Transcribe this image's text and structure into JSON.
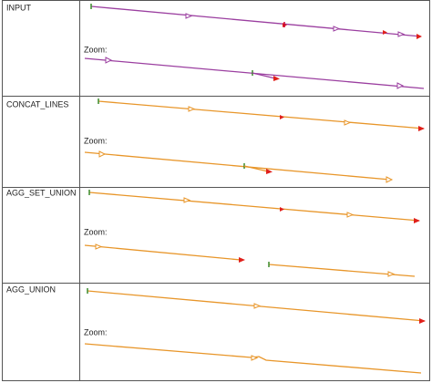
{
  "table": {
    "rows": [
      {
        "label": "INPUT",
        "zoom_label": "Zoom:"
      },
      {
        "label": "CONCAT_LINES",
        "zoom_label": "Zoom:"
      },
      {
        "label": "AGG_SET_UNION",
        "zoom_label": "Zoom:"
      },
      {
        "label": "AGG_UNION",
        "zoom_label": "Zoom:"
      }
    ]
  }
}
